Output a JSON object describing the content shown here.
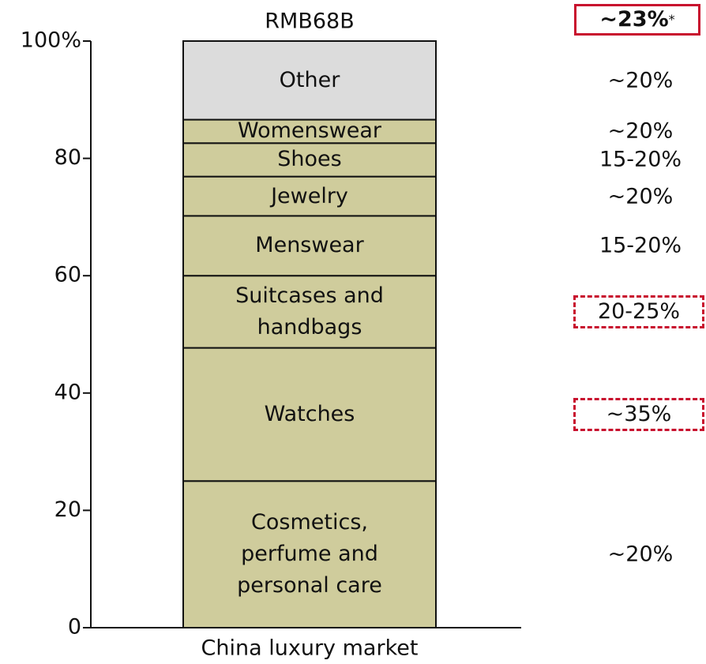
{
  "chart_data": {
    "type": "stacked_bar",
    "categories": [
      "China luxury market"
    ],
    "total_label": "RMB68B",
    "total_growth": "~23%",
    "footnote_mark": "*",
    "ylim": [
      0,
      100
    ],
    "yticks": [
      0,
      20,
      40,
      60,
      80,
      {
        "value": 100,
        "label": "100%"
      }
    ],
    "series": [
      {
        "name": "Cosmetics,\nperfume and\npersonal care",
        "color": "#cfcc9c",
        "values": [
          25
        ],
        "growth": "~20%"
      },
      {
        "name": "Watches",
        "color": "#cfcc9c",
        "values": [
          22.7
        ],
        "growth": "~35%",
        "highlight": "dashed"
      },
      {
        "name": "Suitcases and\nhandbags",
        "color": "#cfcc9c",
        "values": [
          12.3
        ],
        "growth": "20-25%",
        "highlight": "dashed"
      },
      {
        "name": "Menswear",
        "color": "#cfcc9c",
        "values": [
          10.2
        ],
        "growth": "15-20%"
      },
      {
        "name": "Jewelry",
        "color": "#cfcc9c",
        "values": [
          6.7
        ],
        "growth": "~20%"
      },
      {
        "name": "Shoes",
        "color": "#cfcc9c",
        "values": [
          5.7
        ],
        "growth": "15-20%"
      },
      {
        "name": "Womenswear",
        "color": "#cfcc9c",
        "values": [
          4
        ],
        "growth": "~20%"
      },
      {
        "name": "Other",
        "color": "#dcdcdc",
        "values": [
          13.4
        ],
        "growth": "~20%"
      }
    ]
  }
}
